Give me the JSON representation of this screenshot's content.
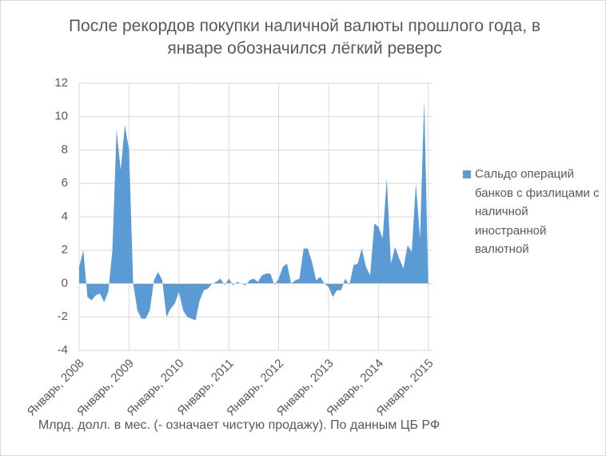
{
  "chart_data": {
    "type": "area",
    "title": "После рекордов покупки наличной валюты прошлого года, в январе обозначился лёгкий реверс",
    "note": "Млрд. долл. в мес. (- означает чистую продажу). По данным ЦБ РФ",
    "categories": [
      "Январь, 2008",
      null,
      null,
      null,
      null,
      null,
      null,
      null,
      null,
      null,
      null,
      null,
      "Январь, 2009",
      null,
      null,
      null,
      null,
      null,
      null,
      null,
      null,
      null,
      null,
      null,
      "Январь, 2010",
      null,
      null,
      null,
      null,
      null,
      null,
      null,
      null,
      null,
      null,
      null,
      "Январь, 2011",
      null,
      null,
      null,
      null,
      null,
      null,
      null,
      null,
      null,
      null,
      null,
      "Январь, 2012",
      null,
      null,
      null,
      null,
      null,
      null,
      null,
      null,
      null,
      null,
      null,
      "Январь, 2013",
      null,
      null,
      null,
      null,
      null,
      null,
      null,
      null,
      null,
      null,
      null,
      "Январь, 2014",
      null,
      null,
      null,
      null,
      null,
      null,
      null,
      null,
      null,
      null,
      null,
      "Январь, 2015"
    ],
    "series": [
      {
        "name": "Сальдо операций банков с физлицами с наличной иностранной валютной",
        "color": "#5b9bd5",
        "values": [
          1.0,
          2.0,
          -0.8,
          -1.0,
          -0.7,
          -0.6,
          -1.1,
          -0.5,
          2.0,
          9.2,
          6.8,
          9.5,
          8.0,
          0.0,
          -1.6,
          -2.1,
          -2.1,
          -1.6,
          0.2,
          0.7,
          0.2,
          -2.0,
          -1.5,
          -1.2,
          -0.5,
          -1.6,
          -2.0,
          -2.1,
          -2.2,
          -1.0,
          -0.4,
          -0.3,
          0.0,
          0.1,
          0.3,
          -0.1,
          0.3,
          -0.1,
          0.1,
          0.0,
          -0.1,
          0.2,
          0.3,
          0.1,
          0.5,
          0.6,
          0.6,
          -0.1,
          0.3,
          1.0,
          1.2,
          0.0,
          0.2,
          0.3,
          2.1,
          2.1,
          1.3,
          0.2,
          0.4,
          0.0,
          -0.2,
          -0.8,
          -0.4,
          -0.4,
          0.3,
          -0.1,
          1.1,
          1.2,
          2.1,
          1.0,
          0.5,
          3.6,
          3.4,
          2.7,
          6.3,
          1.2,
          2.2,
          1.5,
          0.9,
          2.3,
          1.9,
          6.0,
          2.7,
          11.0,
          -0.3
        ]
      }
    ],
    "ylim": [
      -4,
      12
    ],
    "yticks": [
      -4,
      -2,
      0,
      2,
      4,
      6,
      8,
      10,
      12
    ],
    "grid": true
  }
}
